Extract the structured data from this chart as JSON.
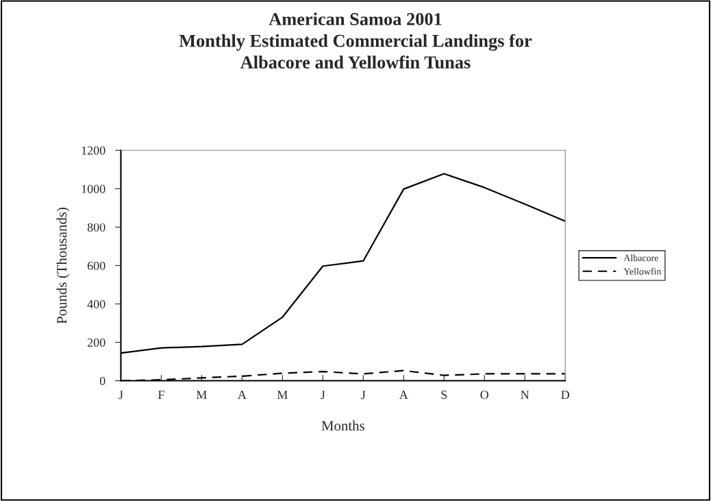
{
  "chart_data": {
    "type": "line",
    "title": "American Samoa 2001\nMonthly Estimated Commercial Landings for\nAlbacore and Yellowfin Tunas",
    "xlabel": "Months",
    "ylabel": "Pounds (Thousands)",
    "categories": [
      "J",
      "F",
      "M",
      "A",
      "M",
      "J",
      "J",
      "A",
      "S",
      "O",
      "N",
      "D"
    ],
    "series": [
      {
        "name": "Albacore",
        "color": "#000000",
        "line_style": "solid",
        "values": [
          144,
          171,
          178,
          190,
          331,
          597,
          624,
          998,
          1078,
          1006,
          920,
          831
        ]
      },
      {
        "name": "Yellowfin",
        "color": "#000000",
        "line_style": "dashed",
        "values": [
          0,
          5,
          15,
          24,
          39,
          48,
          36,
          53,
          28,
          36,
          36,
          36
        ]
      }
    ],
    "ylim": [
      0,
      1200
    ],
    "yticks": [
      0,
      200,
      400,
      600,
      800,
      1000,
      1200
    ],
    "grid": false,
    "legend": "right",
    "marker": "none"
  }
}
